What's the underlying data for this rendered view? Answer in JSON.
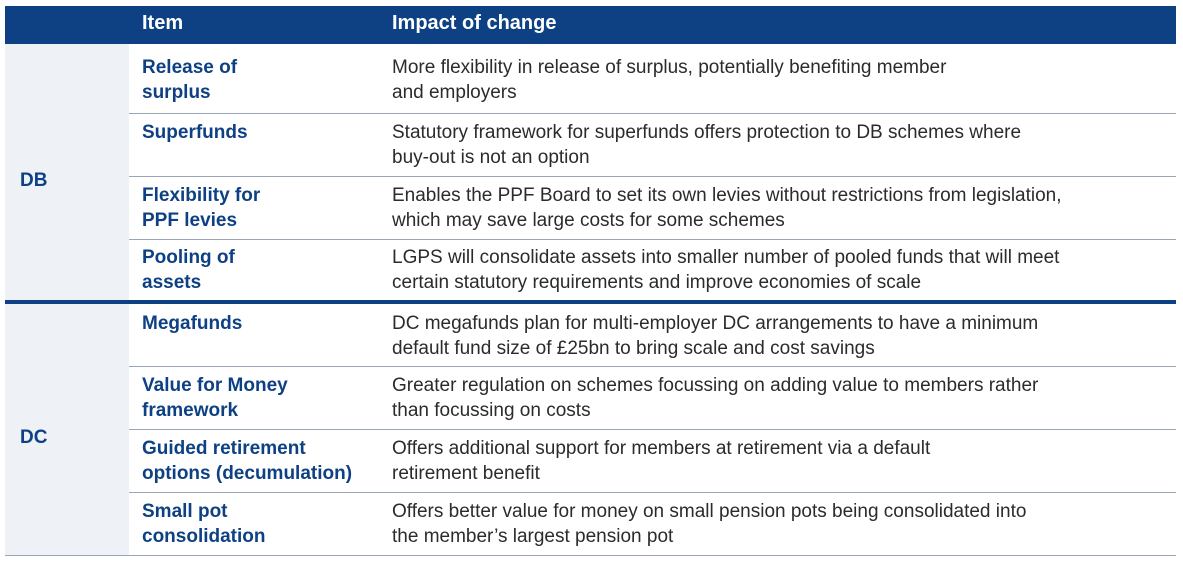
{
  "header": {
    "item_label": "Item",
    "impact_label": "Impact of change"
  },
  "groups": [
    {
      "label": "DB",
      "rows": [
        {
          "item_lines": [
            "Release of",
            "surplus"
          ],
          "impact_lines": [
            "More flexibility in release of surplus, potentially benefiting member",
            "and employers"
          ]
        },
        {
          "item_lines": [
            "Superfunds"
          ],
          "impact_lines": [
            "Statutory framework for superfunds offers protection to DB schemes where",
            "buy-out is not an option"
          ]
        },
        {
          "item_lines": [
            "Flexibility for",
            "PPF levies"
          ],
          "impact_lines": [
            "Enables the PPF Board to set its own levies without restrictions from legislation,",
            "which may save large costs for some schemes"
          ]
        },
        {
          "item_lines": [
            "Pooling of",
            "assets"
          ],
          "impact_lines": [
            "LGPS will consolidate assets into smaller number of pooled funds that will meet",
            "certain statutory requirements and improve economies of scale"
          ]
        }
      ]
    },
    {
      "label": "DC",
      "rows": [
        {
          "item_lines": [
            "Megafunds"
          ],
          "impact_lines": [
            "DC megafunds plan for multi-employer DC arrangements to have a minimum",
            "default fund size of £25bn to bring scale and cost savings"
          ]
        },
        {
          "item_lines": [
            "Value for Money",
            "framework"
          ],
          "impact_lines": [
            "Greater regulation on schemes focussing on adding value to members rather",
            "than focussing on costs"
          ]
        },
        {
          "item_lines": [
            "Guided retirement",
            "options (decumulation)"
          ],
          "impact_lines": [
            "Offers additional support for members at retirement via a default",
            "retirement benefit"
          ]
        },
        {
          "item_lines": [
            "Small pot",
            "consolidation"
          ],
          "impact_lines": [
            "Offers better value for money on small pension pots being consolidated into",
            "the member’s largest pension pot"
          ]
        }
      ]
    }
  ],
  "colors": {
    "header_bg": "#0e4184",
    "group_bg": "#eef1f6",
    "accent_text": "#0e4184",
    "body_text": "#2b2b2b"
  }
}
